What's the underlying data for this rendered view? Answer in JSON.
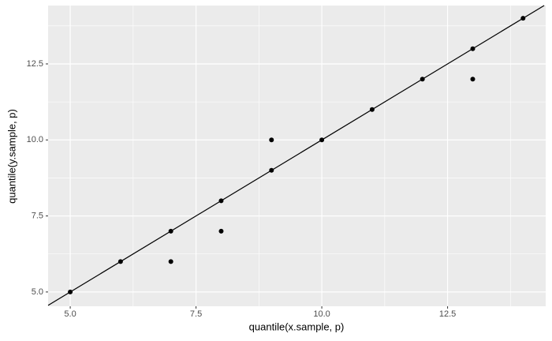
{
  "chart_data": {
    "type": "scatter",
    "x_label": "quantile(x.sample, p)",
    "y_label": "quantile(y.sample, p)",
    "x": [
      5,
      6,
      7,
      7,
      8,
      8,
      9,
      9,
      10,
      11,
      12,
      13,
      13,
      14
    ],
    "values": [
      5,
      6,
      7,
      6,
      8,
      7,
      9,
      10,
      10,
      11,
      12,
      13,
      12,
      14
    ],
    "color": "#000000",
    "xlim": [
      4.56,
      14.45
    ],
    "ylim": [
      4.53,
      14.42
    ],
    "xticks": [
      {
        "value": 5,
        "label": "5.0"
      },
      7.5,
      {
        "value": 10,
        "label": "10.0"
      },
      12.5
    ],
    "yticks": [
      {
        "value": 5,
        "label": "5.0"
      },
      7.5,
      {
        "value": 10,
        "label": "10.0"
      },
      12.5
    ],
    "xminor": [
      6.25,
      8.75,
      11.25,
      13.75
    ],
    "yminor": [
      6.25,
      8.75,
      11.25,
      13.75
    ],
    "reference_line": {
      "slope": 1,
      "intercept": 0
    },
    "grid": true
  }
}
